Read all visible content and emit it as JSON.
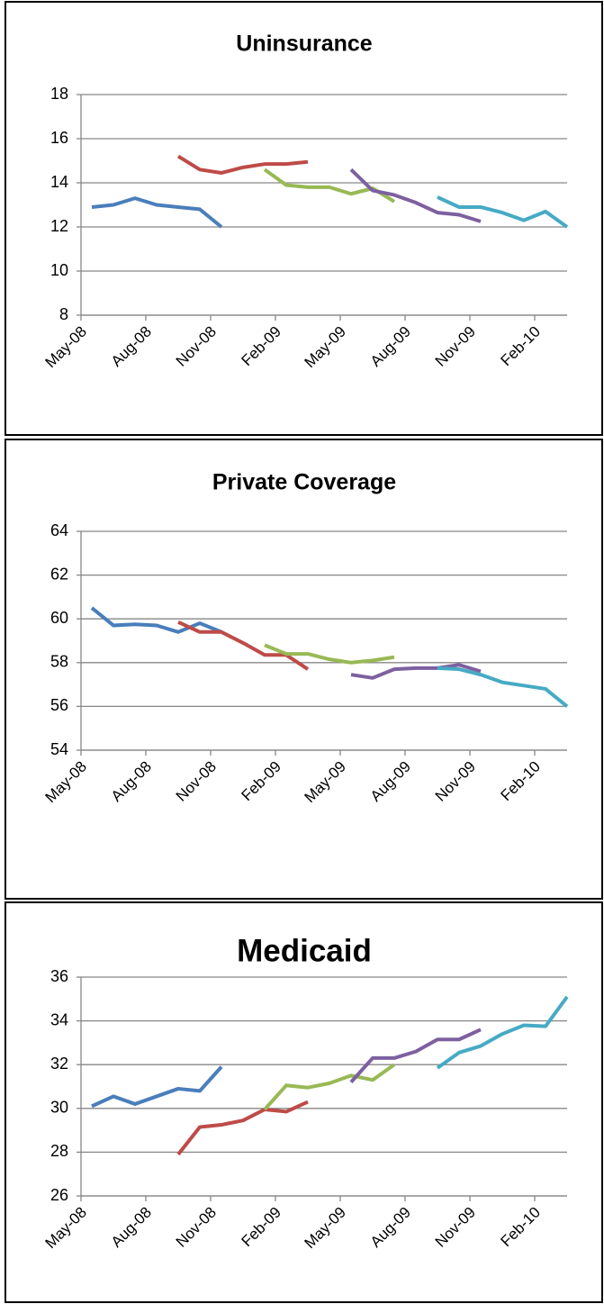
{
  "chart_data": [
    {
      "type": "line",
      "title": "Uninsurance",
      "categories": [
        "May-08",
        null,
        null,
        "Aug-08",
        null,
        null,
        "Nov-08",
        null,
        null,
        "Feb-09",
        null,
        null,
        "May-09",
        null,
        null,
        "Aug-09",
        null,
        null,
        "Nov-09",
        null,
        null,
        "Feb-10",
        null
      ],
      "series": [
        {
          "color": "#4a7ebb",
          "values": [
            12.9,
            13.0,
            13.3,
            13.0,
            12.9,
            12.8,
            12.0,
            null,
            null,
            null,
            null,
            null,
            null,
            null,
            null,
            null,
            null,
            null,
            null,
            null,
            null,
            null,
            null
          ]
        },
        {
          "color": "#be4b48",
          "values": [
            null,
            null,
            null,
            null,
            15.2,
            14.6,
            14.45,
            14.7,
            14.85,
            14.85,
            14.95,
            null,
            null,
            null,
            null,
            null,
            null,
            null,
            null,
            null,
            null,
            null,
            null
          ]
        },
        {
          "color": "#98b954",
          "values": [
            null,
            null,
            null,
            null,
            null,
            null,
            null,
            null,
            14.6,
            13.9,
            13.8,
            13.8,
            13.5,
            13.75,
            13.15,
            null,
            null,
            null,
            null,
            null,
            null,
            null,
            null
          ]
        },
        {
          "color": "#7d60a0",
          "values": [
            null,
            null,
            null,
            null,
            null,
            null,
            null,
            null,
            null,
            null,
            null,
            null,
            14.6,
            13.65,
            13.45,
            13.1,
            12.65,
            12.55,
            12.25,
            null,
            null,
            null,
            null
          ]
        },
        {
          "color": "#46aac5",
          "values": [
            null,
            null,
            null,
            null,
            null,
            null,
            null,
            null,
            null,
            null,
            null,
            null,
            null,
            null,
            null,
            null,
            13.35,
            12.9,
            12.9,
            12.65,
            12.3,
            12.7,
            12.0
          ]
        }
      ],
      "ylim": [
        8,
        18
      ],
      "yticks": [
        8,
        10,
        12,
        14,
        16,
        18
      ],
      "grid": true
    },
    {
      "type": "line",
      "title": "Private Coverage",
      "categories": [
        "May-08",
        null,
        null,
        "Aug-08",
        null,
        null,
        "Nov-08",
        null,
        null,
        "Feb-09",
        null,
        null,
        "May-09",
        null,
        null,
        "Aug-09",
        null,
        null,
        "Nov-09",
        null,
        null,
        "Feb-10",
        null
      ],
      "series": [
        {
          "color": "#4a7ebb",
          "values": [
            60.5,
            59.7,
            59.75,
            59.7,
            59.4,
            59.8,
            59.4,
            null,
            null,
            null,
            null,
            null,
            null,
            null,
            null,
            null,
            null,
            null,
            null,
            null,
            null,
            null,
            null
          ]
        },
        {
          "color": "#be4b48",
          "values": [
            null,
            null,
            null,
            null,
            59.85,
            59.4,
            59.4,
            58.9,
            58.35,
            58.35,
            57.7,
            null,
            null,
            null,
            null,
            null,
            null,
            null,
            null,
            null,
            null,
            null,
            null
          ]
        },
        {
          "color": "#98b954",
          "values": [
            null,
            null,
            null,
            null,
            null,
            null,
            null,
            null,
            58.8,
            58.4,
            58.4,
            58.15,
            58.0,
            58.1,
            58.25,
            null,
            null,
            null,
            null,
            null,
            null,
            null,
            null
          ]
        },
        {
          "color": "#7d60a0",
          "values": [
            null,
            null,
            null,
            null,
            null,
            null,
            null,
            null,
            null,
            null,
            null,
            null,
            57.45,
            57.3,
            57.7,
            57.75,
            57.75,
            57.9,
            57.6,
            null,
            null,
            null,
            null
          ]
        },
        {
          "color": "#46aac5",
          "values": [
            null,
            null,
            null,
            null,
            null,
            null,
            null,
            null,
            null,
            null,
            null,
            null,
            null,
            null,
            null,
            null,
            57.75,
            57.7,
            57.45,
            57.1,
            56.95,
            56.8,
            56.0
          ]
        }
      ],
      "ylim": [
        54,
        64
      ],
      "yticks": [
        54,
        56,
        58,
        60,
        62,
        64
      ],
      "grid": true
    },
    {
      "type": "line",
      "title": "Medicaid",
      "categories": [
        "May-08",
        null,
        null,
        "Aug-08",
        null,
        null,
        "Nov-08",
        null,
        null,
        "Feb-09",
        null,
        null,
        "May-09",
        null,
        null,
        "Aug-09",
        null,
        null,
        "Nov-09",
        null,
        null,
        "Feb-10",
        null
      ],
      "series": [
        {
          "color": "#4a7ebb",
          "values": [
            30.1,
            30.55,
            30.2,
            30.55,
            30.9,
            30.8,
            31.9,
            null,
            null,
            null,
            null,
            null,
            null,
            null,
            null,
            null,
            null,
            null,
            null,
            null,
            null,
            null,
            null
          ]
        },
        {
          "color": "#be4b48",
          "values": [
            null,
            null,
            null,
            null,
            27.9,
            29.15,
            29.25,
            29.45,
            29.95,
            29.85,
            30.3,
            null,
            null,
            null,
            null,
            null,
            null,
            null,
            null,
            null,
            null,
            null,
            null
          ]
        },
        {
          "color": "#98b954",
          "values": [
            null,
            null,
            null,
            null,
            null,
            null,
            null,
            null,
            29.95,
            31.05,
            30.95,
            31.15,
            31.5,
            31.3,
            32.0,
            null,
            null,
            null,
            null,
            null,
            null,
            null,
            null
          ]
        },
        {
          "color": "#7d60a0",
          "values": [
            null,
            null,
            null,
            null,
            null,
            null,
            null,
            null,
            null,
            null,
            null,
            null,
            31.2,
            32.3,
            32.3,
            32.6,
            33.15,
            33.15,
            33.6,
            null,
            null,
            null,
            null
          ]
        },
        {
          "color": "#46aac5",
          "values": [
            null,
            null,
            null,
            null,
            null,
            null,
            null,
            null,
            null,
            null,
            null,
            null,
            null,
            null,
            null,
            null,
            31.85,
            32.55,
            32.85,
            33.4,
            33.8,
            33.75,
            35.1
          ]
        }
      ],
      "ylim": [
        26,
        36
      ],
      "yticks": [
        26,
        28,
        30,
        32,
        34,
        36
      ],
      "grid": true
    }
  ]
}
